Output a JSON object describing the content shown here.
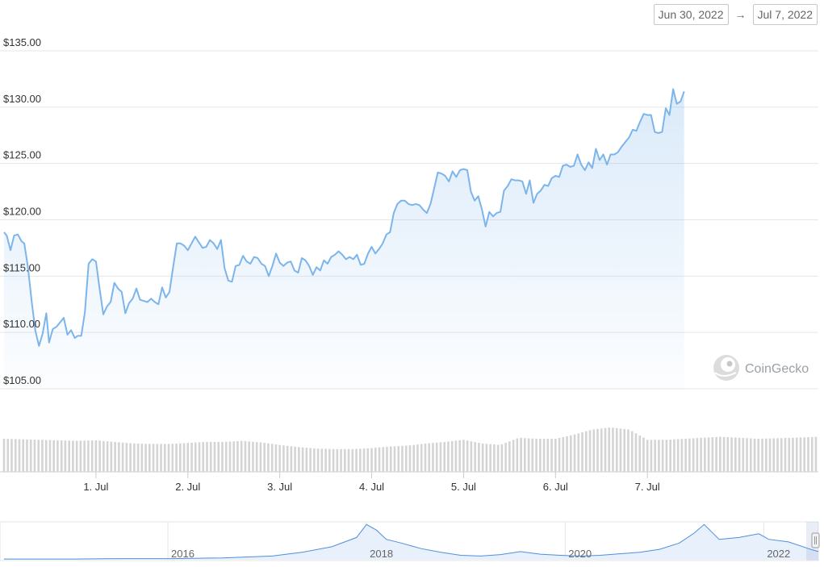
{
  "range": {
    "from": "Jun 30, 2022",
    "to": "Jul 7, 2022",
    "arrow": "→"
  },
  "brand": {
    "name": "CoinGecko",
    "icon": "gecko-icon"
  },
  "colors": {
    "line": "#7cb5ec",
    "volume": "#d4d4d4",
    "grid": "#e6e6e6",
    "navigator_line": "#4e8fdb"
  },
  "chart_data": {
    "type": "area",
    "ylim": [
      105,
      135
    ],
    "y_ticks": [
      "$105.00",
      "$110.00",
      "$115.00",
      "$120.00",
      "$125.00",
      "$130.00",
      "$135.00"
    ],
    "x_tick_labels": [
      "1. Jul",
      "2. Jul",
      "3. Jul",
      "4. Jul",
      "5. Jul",
      "6. Jul",
      "7. Jul"
    ],
    "x_range_days": [
      -1.0,
      7.86
    ],
    "price_series": [
      [
        -1.0,
        118.9
      ],
      [
        -0.97,
        118.6
      ],
      [
        -0.93,
        117.3
      ],
      [
        -0.89,
        118.6
      ],
      [
        -0.85,
        118.7
      ],
      [
        -0.81,
        118.1
      ],
      [
        -0.78,
        117.9
      ],
      [
        -0.74,
        115.8
      ],
      [
        -0.7,
        112.8
      ],
      [
        -0.66,
        110.2
      ],
      [
        -0.62,
        108.8
      ],
      [
        -0.58,
        109.9
      ],
      [
        -0.54,
        111.7
      ],
      [
        -0.51,
        109.1
      ],
      [
        -0.47,
        110.3
      ],
      [
        -0.43,
        110.5
      ],
      [
        -0.39,
        110.9
      ],
      [
        -0.35,
        111.3
      ],
      [
        -0.31,
        109.8
      ],
      [
        -0.27,
        110.2
      ],
      [
        -0.23,
        109.5
      ],
      [
        -0.2,
        109.7
      ],
      [
        -0.16,
        109.7
      ],
      [
        -0.12,
        111.8
      ],
      [
        -0.08,
        116.1
      ],
      [
        -0.04,
        116.5
      ],
      [
        0.0,
        116.3
      ],
      [
        0.04,
        113.9
      ],
      [
        0.08,
        111.6
      ],
      [
        0.12,
        112.3
      ],
      [
        0.16,
        112.7
      ],
      [
        0.2,
        114.4
      ],
      [
        0.24,
        113.9
      ],
      [
        0.28,
        113.6
      ],
      [
        0.32,
        111.7
      ],
      [
        0.36,
        112.6
      ],
      [
        0.4,
        113.0
      ],
      [
        0.44,
        113.9
      ],
      [
        0.48,
        112.9
      ],
      [
        0.52,
        112.8
      ],
      [
        0.56,
        112.7
      ],
      [
        0.6,
        113.0
      ],
      [
        0.64,
        112.7
      ],
      [
        0.68,
        112.5
      ],
      [
        0.72,
        114.0
      ],
      [
        0.76,
        113.1
      ],
      [
        0.8,
        113.6
      ],
      [
        0.84,
        115.8
      ],
      [
        0.88,
        117.9
      ],
      [
        0.92,
        117.9
      ],
      [
        0.96,
        117.7
      ],
      [
        1.0,
        117.3
      ],
      [
        1.04,
        117.9
      ],
      [
        1.08,
        118.5
      ],
      [
        1.12,
        118.0
      ],
      [
        1.16,
        117.5
      ],
      [
        1.2,
        117.6
      ],
      [
        1.24,
        118.2
      ],
      [
        1.28,
        117.9
      ],
      [
        1.32,
        117.4
      ],
      [
        1.36,
        118.2
      ],
      [
        1.4,
        115.7
      ],
      [
        1.44,
        114.6
      ],
      [
        1.48,
        114.5
      ],
      [
        1.52,
        115.9
      ],
      [
        1.56,
        116.0
      ],
      [
        1.6,
        116.8
      ],
      [
        1.64,
        116.3
      ],
      [
        1.68,
        116.1
      ],
      [
        1.72,
        116.7
      ],
      [
        1.76,
        116.6
      ],
      [
        1.8,
        116.1
      ],
      [
        1.84,
        115.9
      ],
      [
        1.88,
        115.0
      ],
      [
        1.92,
        115.9
      ],
      [
        1.96,
        117.0
      ],
      [
        2.0,
        116.2
      ],
      [
        2.04,
        115.9
      ],
      [
        2.08,
        116.2
      ],
      [
        2.12,
        116.3
      ],
      [
        2.16,
        115.5
      ],
      [
        2.2,
        115.3
      ],
      [
        2.24,
        116.6
      ],
      [
        2.28,
        116.4
      ],
      [
        2.32,
        115.9
      ],
      [
        2.36,
        115.1
      ],
      [
        2.4,
        115.8
      ],
      [
        2.44,
        115.5
      ],
      [
        2.48,
        116.4
      ],
      [
        2.52,
        116.1
      ],
      [
        2.56,
        116.7
      ],
      [
        2.6,
        116.9
      ],
      [
        2.64,
        117.2
      ],
      [
        2.68,
        116.9
      ],
      [
        2.72,
        116.5
      ],
      [
        2.76,
        116.7
      ],
      [
        2.8,
        116.5
      ],
      [
        2.84,
        116.9
      ],
      [
        2.88,
        116.0
      ],
      [
        2.92,
        116.1
      ],
      [
        2.96,
        117.0
      ],
      [
        3.0,
        117.6
      ],
      [
        3.04,
        117.0
      ],
      [
        3.08,
        117.4
      ],
      [
        3.12,
        117.9
      ],
      [
        3.16,
        118.7
      ],
      [
        3.2,
        118.9
      ],
      [
        3.24,
        120.6
      ],
      [
        3.28,
        121.4
      ],
      [
        3.32,
        121.7
      ],
      [
        3.36,
        121.7
      ],
      [
        3.4,
        121.4
      ],
      [
        3.44,
        121.3
      ],
      [
        3.48,
        121.4
      ],
      [
        3.52,
        121.3
      ],
      [
        3.56,
        120.9
      ],
      [
        3.6,
        120.6
      ],
      [
        3.64,
        121.4
      ],
      [
        3.68,
        122.8
      ],
      [
        3.72,
        124.2
      ],
      [
        3.76,
        124.1
      ],
      [
        3.8,
        123.9
      ],
      [
        3.84,
        123.4
      ],
      [
        3.88,
        124.3
      ],
      [
        3.92,
        123.8
      ],
      [
        3.96,
        124.4
      ],
      [
        4.0,
        124.5
      ],
      [
        4.04,
        124.4
      ],
      [
        4.08,
        122.5
      ],
      [
        4.12,
        121.7
      ],
      [
        4.16,
        122.1
      ],
      [
        4.2,
        120.9
      ],
      [
        4.24,
        119.4
      ],
      [
        4.28,
        120.7
      ],
      [
        4.32,
        120.3
      ],
      [
        4.36,
        120.6
      ],
      [
        4.4,
        120.7
      ],
      [
        4.44,
        122.6
      ],
      [
        4.48,
        123.0
      ],
      [
        4.52,
        123.6
      ],
      [
        4.56,
        123.5
      ],
      [
        4.6,
        123.5
      ],
      [
        4.64,
        123.4
      ],
      [
        4.68,
        122.3
      ],
      [
        4.72,
        123.5
      ],
      [
        4.76,
        121.5
      ],
      [
        4.8,
        122.3
      ],
      [
        4.84,
        122.6
      ],
      [
        4.88,
        123.1
      ],
      [
        4.92,
        123.0
      ],
      [
        4.96,
        123.7
      ],
      [
        5.0,
        123.9
      ],
      [
        5.04,
        123.8
      ],
      [
        5.08,
        124.8
      ],
      [
        5.12,
        124.9
      ],
      [
        5.16,
        124.7
      ],
      [
        5.2,
        124.8
      ],
      [
        5.24,
        125.8
      ],
      [
        5.28,
        124.9
      ],
      [
        5.32,
        124.4
      ],
      [
        5.36,
        125.1
      ],
      [
        5.4,
        124.6
      ],
      [
        5.44,
        126.3
      ],
      [
        5.48,
        125.3
      ],
      [
        5.52,
        125.8
      ],
      [
        5.56,
        124.9
      ],
      [
        5.6,
        125.8
      ],
      [
        5.64,
        125.8
      ],
      [
        5.68,
        126.0
      ],
      [
        5.72,
        126.5
      ],
      [
        5.76,
        126.9
      ],
      [
        5.8,
        127.3
      ],
      [
        5.84,
        128.0
      ],
      [
        5.88,
        127.9
      ],
      [
        5.92,
        128.7
      ],
      [
        5.96,
        129.4
      ],
      [
        6.0,
        129.3
      ],
      [
        6.04,
        129.3
      ],
      [
        6.08,
        127.8
      ],
      [
        6.12,
        127.7
      ],
      [
        6.16,
        127.8
      ],
      [
        6.2,
        129.9
      ],
      [
        6.24,
        129.3
      ],
      [
        6.28,
        131.6
      ],
      [
        6.32,
        130.3
      ],
      [
        6.36,
        130.5
      ],
      [
        6.4,
        131.4
      ]
    ],
    "volume_series": [
      [
        -1.0,
        0.64
      ],
      [
        -0.8,
        0.63
      ],
      [
        -0.6,
        0.62
      ],
      [
        -0.4,
        0.61
      ],
      [
        -0.2,
        0.6
      ],
      [
        0.0,
        0.61
      ],
      [
        0.2,
        0.58
      ],
      [
        0.4,
        0.55
      ],
      [
        0.6,
        0.54
      ],
      [
        0.8,
        0.54
      ],
      [
        1.0,
        0.56
      ],
      [
        1.2,
        0.58
      ],
      [
        1.4,
        0.58
      ],
      [
        1.6,
        0.6
      ],
      [
        1.8,
        0.57
      ],
      [
        2.0,
        0.52
      ],
      [
        2.2,
        0.48
      ],
      [
        2.4,
        0.45
      ],
      [
        2.6,
        0.44
      ],
      [
        2.8,
        0.44
      ],
      [
        3.0,
        0.46
      ],
      [
        3.2,
        0.49
      ],
      [
        3.4,
        0.51
      ],
      [
        3.6,
        0.55
      ],
      [
        3.8,
        0.58
      ],
      [
        4.0,
        0.62
      ],
      [
        4.2,
        0.55
      ],
      [
        4.4,
        0.52
      ],
      [
        4.6,
        0.66
      ],
      [
        4.8,
        0.64
      ],
      [
        5.0,
        0.64
      ],
      [
        5.2,
        0.72
      ],
      [
        5.4,
        0.82
      ],
      [
        5.6,
        0.86
      ],
      [
        5.8,
        0.82
      ],
      [
        6.0,
        0.62
      ],
      [
        6.2,
        0.62
      ],
      [
        6.4,
        0.64
      ],
      [
        6.6,
        0.66
      ],
      [
        6.8,
        0.68
      ],
      [
        7.0,
        0.66
      ],
      [
        7.2,
        0.64
      ],
      [
        7.4,
        0.65
      ],
      [
        7.6,
        0.66
      ],
      [
        7.86,
        0.68
      ]
    ],
    "navigator": {
      "labels": [
        "2016",
        "2018",
        "2020",
        "2022"
      ],
      "series": [
        [
          2014.3,
          0.02
        ],
        [
          2015.0,
          0.02
        ],
        [
          2015.5,
          0.03
        ],
        [
          2016.0,
          0.03
        ],
        [
          2016.5,
          0.05
        ],
        [
          2017.0,
          0.1
        ],
        [
          2017.3,
          0.2
        ],
        [
          2017.6,
          0.35
        ],
        [
          2017.85,
          0.6
        ],
        [
          2017.95,
          0.95
        ],
        [
          2018.05,
          0.8
        ],
        [
          2018.15,
          0.55
        ],
        [
          2018.3,
          0.45
        ],
        [
          2018.5,
          0.3
        ],
        [
          2018.7,
          0.2
        ],
        [
          2018.9,
          0.12
        ],
        [
          2019.1,
          0.1
        ],
        [
          2019.3,
          0.14
        ],
        [
          2019.5,
          0.22
        ],
        [
          2019.7,
          0.15
        ],
        [
          2019.9,
          0.12
        ],
        [
          2020.1,
          0.1
        ],
        [
          2020.3,
          0.12
        ],
        [
          2020.5,
          0.16
        ],
        [
          2020.7,
          0.2
        ],
        [
          2020.9,
          0.28
        ],
        [
          2021.1,
          0.45
        ],
        [
          2021.25,
          0.72
        ],
        [
          2021.35,
          0.95
        ],
        [
          2021.5,
          0.55
        ],
        [
          2021.7,
          0.6
        ],
        [
          2021.9,
          0.7
        ],
        [
          2022.0,
          0.55
        ],
        [
          2022.2,
          0.48
        ],
        [
          2022.4,
          0.3
        ],
        [
          2022.5,
          0.22
        ]
      ]
    }
  }
}
